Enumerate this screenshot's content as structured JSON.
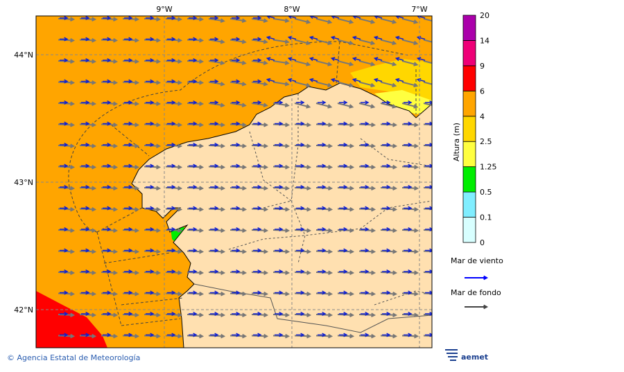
{
  "map": {
    "lon_labels": [
      "9°W",
      "8°W",
      "7°W"
    ],
    "lat_labels": [
      "44°N",
      "43°N",
      "42°N"
    ]
  },
  "colorbar": {
    "title": "Altura (m)",
    "levels": [
      "0",
      "0.1",
      "0.5",
      "1.25",
      "2.5",
      "4",
      "6",
      "9",
      "14",
      "20"
    ],
    "colors": [
      "#d8ffff",
      "#80eeff",
      "#00ee00",
      "#ffff40",
      "#ffd700",
      "#ffa500",
      "#ff0000",
      "#ee0077",
      "#aa00aa"
    ]
  },
  "legend": [
    {
      "label": "Mar de viento",
      "color": "#0000ff"
    },
    {
      "label": "Mar de fondo",
      "color": "#444444"
    }
  ],
  "footer": {
    "credit": "© Agencia Estatal de Meteorología",
    "logo": "aemet"
  }
}
